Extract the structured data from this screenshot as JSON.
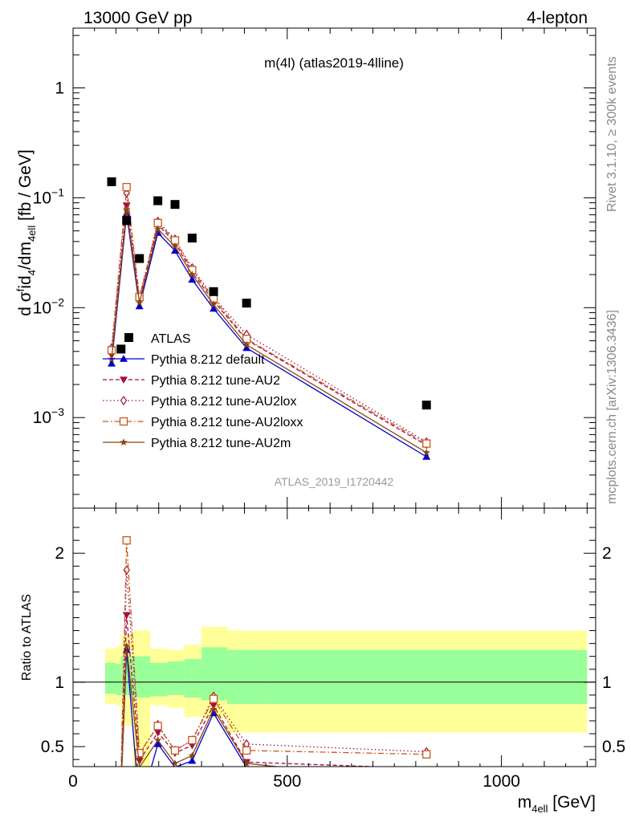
{
  "header": {
    "energy_label": "13000 GeV pp",
    "process_label": "4-lepton"
  },
  "side_text": {
    "rivet": "Rivet 3.1.10, ≥ 300k events",
    "mcplots": "mcplots.cern.ch [arXiv:1306.3436]"
  },
  "chart_data": [
    {
      "type": "line",
      "title": "m(4l) (atlas2019-4lline)",
      "analysis_id": "ATLAS_2019_I1720442",
      "yscale": "log",
      "ylim": [
        0.00015,
        3.5
      ],
      "xlim": [
        0,
        1220
      ],
      "ylabel_parts": {
        "pre": "d σ",
        "sup": "f",
        "mid": "id",
        "sub1": "4",
        "mid2": "/dm",
        "sub2": "4ell",
        "post": " [fb / GeV]"
      },
      "y_ticks": [
        {
          "value": 0.001,
          "base": "10",
          "exp": "−3"
        },
        {
          "value": 0.01,
          "base": "10",
          "exp": "−2"
        },
        {
          "value": 0.1,
          "base": "10",
          "exp": "−1"
        },
        {
          "value": 1,
          "base": "1",
          "exp": ""
        }
      ],
      "legend_position": "lower-left",
      "x_bins": [
        [
          80,
          100
        ],
        [
          100,
          112
        ],
        [
          112,
          140
        ],
        [
          140,
          180
        ],
        [
          180,
          220
        ],
        [
          220,
          260
        ],
        [
          260,
          300
        ],
        [
          300,
          360
        ],
        [
          360,
          450
        ],
        [
          450,
          1200
        ]
      ],
      "data": {
        "name": "ATLAS",
        "x": [
          90,
          112,
          125,
          155,
          198,
          238,
          278,
          328,
          405,
          825
        ],
        "y": [
          0.14,
          0.0042,
          0.062,
          0.028,
          0.094,
          0.087,
          0.043,
          0.014,
          0.011,
          0.0013
        ]
      },
      "series": [
        {
          "name": "Pythia 8.212 default",
          "color": "#0000cc",
          "dash": "",
          "marker": "triangle-up",
          "x": [
            90,
            125,
            155,
            198,
            238,
            278,
            328,
            405,
            825
          ],
          "y": [
            0.0031,
            0.072,
            0.0103,
            0.048,
            0.033,
            0.018,
            0.0098,
            0.0043,
            0.00044
          ]
        },
        {
          "name": "Pythia 8.212 tune-AU2",
          "color": "#a01045",
          "dash": "5,3",
          "marker": "triangle-down",
          "x": [
            90,
            125,
            155,
            198,
            238,
            278,
            328,
            405,
            825
          ],
          "y": [
            0.0037,
            0.085,
            0.0118,
            0.057,
            0.039,
            0.021,
            0.0115,
            0.0051,
            0.00056
          ]
        },
        {
          "name": "Pythia 8.212 tune-AU2lox",
          "color": "#a01045",
          "dash": "1.5,3",
          "marker": "diamond",
          "x": [
            90,
            125,
            155,
            198,
            238,
            278,
            328,
            405,
            825
          ],
          "y": [
            0.0043,
            0.11,
            0.0124,
            0.061,
            0.042,
            0.023,
            0.0124,
            0.0057,
            0.0006
          ]
        },
        {
          "name": "Pythia 8.212 tune-AU2loxx",
          "color": "#c8581a",
          "dash": "7,3,1.5,3",
          "marker": "square",
          "x": [
            90,
            125,
            155,
            198,
            238,
            278,
            328,
            405,
            825
          ],
          "y": [
            0.0041,
            0.125,
            0.0125,
            0.059,
            0.041,
            0.022,
            0.0121,
            0.0052,
            0.00058
          ]
        },
        {
          "name": "Pythia 8.212 tune-AU2m",
          "color": "#8b4513",
          "dash": "",
          "marker": "star",
          "x": [
            90,
            125,
            155,
            198,
            238,
            278,
            328,
            405,
            825
          ],
          "y": [
            0.0034,
            0.078,
            0.0111,
            0.052,
            0.036,
            0.02,
            0.0107,
            0.0046,
            0.00048
          ]
        }
      ]
    },
    {
      "type": "line",
      "ylabel": "Ratio to ATLAS",
      "xlabel_parts": {
        "pre": "m",
        "sub": "4ell",
        "post": " [GeV]"
      },
      "ylim": [
        0.345,
        2.35
      ],
      "xlim": [
        0,
        1220
      ],
      "y_ticks": [
        0.5,
        1,
        2
      ],
      "x_ticks": [
        0,
        500,
        1000
      ],
      "reference_line": 1,
      "bands": {
        "inner_color": "#99ff99",
        "outer_color": "#ffff99",
        "bins": [
          {
            "x": [
              75,
              100
            ],
            "inner": [
              0.91,
              1.15
            ],
            "outer": [
              0.83,
              1.26
            ]
          },
          {
            "x": [
              100,
              112
            ],
            "inner": [
              0.9,
              1.14
            ],
            "outer": [
              0.82,
              1.28
            ]
          },
          {
            "x": [
              112,
              140
            ],
            "inner": [
              0.9,
              1.2
            ],
            "outer": [
              0.66,
              1.37
            ]
          },
          {
            "x": [
              140,
              180
            ],
            "inner": [
              0.88,
              1.2
            ],
            "outer": [
              0.34,
              1.4
            ]
          },
          {
            "x": [
              180,
              220
            ],
            "inner": [
              0.89,
              1.15
            ],
            "outer": [
              0.82,
              1.26
            ]
          },
          {
            "x": [
              220,
              260
            ],
            "inner": [
              0.9,
              1.16
            ],
            "outer": [
              0.8,
              1.25
            ]
          },
          {
            "x": [
              260,
              300
            ],
            "inner": [
              0.88,
              1.18
            ],
            "outer": [
              0.73,
              1.29
            ]
          },
          {
            "x": [
              300,
              360
            ],
            "inner": [
              0.86,
              1.27
            ],
            "outer": [
              0.72,
              1.43
            ]
          },
          {
            "x": [
              360,
              450
            ],
            "inner": [
              0.83,
              1.25
            ],
            "outer": [
              0.61,
              1.4
            ]
          },
          {
            "x": [
              450,
              1200
            ],
            "inner": [
              0.83,
              1.25
            ],
            "outer": [
              0.61,
              1.4
            ]
          }
        ]
      },
      "series": [
        {
          "name": "Pythia 8.212 default",
          "x": [
            110,
            125,
            155,
            198,
            238,
            278,
            328,
            405,
            470
          ],
          "y": [
            0.02,
            1.25,
            0.02,
            0.52,
            0.34,
            0.39,
            0.76,
            0.34,
            0.02
          ]
        },
        {
          "name": "Pythia 8.212 tune-AU2",
          "x": [
            110,
            125,
            155,
            198,
            238,
            278,
            328,
            405,
            825
          ],
          "y": [
            0.02,
            1.52,
            0.39,
            0.61,
            0.45,
            0.51,
            0.82,
            0.38,
            0.33
          ]
        },
        {
          "name": "Pythia 8.212 tune-AU2lox",
          "x": [
            110,
            125,
            155,
            198,
            238,
            278,
            328,
            405,
            825
          ],
          "y": [
            0.02,
            1.87,
            0.44,
            0.67,
            0.47,
            0.55,
            0.89,
            0.52,
            0.46
          ]
        },
        {
          "name": "Pythia 8.212 tune-AU2loxx",
          "x": [
            110,
            125,
            155,
            198,
            238,
            278,
            328,
            405,
            825
          ],
          "y": [
            0.02,
            2.1,
            0.45,
            0.66,
            0.47,
            0.55,
            0.87,
            0.47,
            0.44
          ]
        },
        {
          "name": "Pythia 8.212 tune-AU2m",
          "x": [
            110,
            125,
            155,
            198,
            238,
            278,
            328,
            405,
            600
          ],
          "y": [
            0.02,
            1.28,
            0.34,
            0.55,
            0.37,
            0.43,
            0.79,
            0.37,
            0.3
          ]
        }
      ]
    }
  ]
}
